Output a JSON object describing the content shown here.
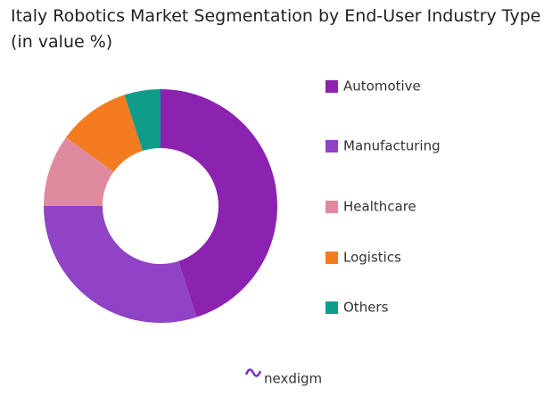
{
  "chart_data": {
    "type": "donut",
    "title": "Italy Robotics Market Segmentation by End-User Industry Type (in value %)",
    "categories": [
      "Automotive",
      "Manufacturing",
      "Healthcare",
      "Logistics",
      "Others"
    ],
    "values": [
      45,
      30,
      10,
      10,
      5
    ],
    "colors": [
      "#8b22b0",
      "#8e44c4",
      "#e08aa0",
      "#f47c20",
      "#0f9d8a"
    ],
    "legend": "right",
    "watermark": "nexdigm"
  }
}
